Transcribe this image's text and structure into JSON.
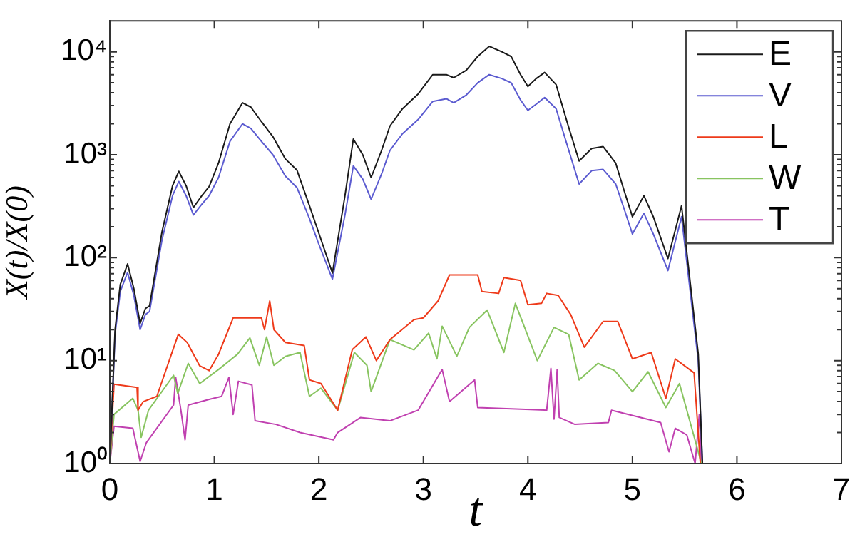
{
  "chart_data": {
    "type": "line",
    "xlabel": "t",
    "ylabel": "X(t)/X(0)",
    "log": "y",
    "xlim": [
      0,
      7
    ],
    "xticks": [
      0,
      1,
      2,
      3,
      4,
      5,
      6,
      7
    ],
    "ylim": [
      1,
      20000
    ],
    "yticks": [
      {
        "value": 1,
        "label": "10⁰"
      },
      {
        "value": 10,
        "label": "10¹"
      },
      {
        "value": 100,
        "label": "10²"
      },
      {
        "value": 1000,
        "label": "10³"
      },
      {
        "value": 10000,
        "label": "10⁴"
      }
    ],
    "grid": false,
    "legend": "top right",
    "marker": "none",
    "line_style": "solid",
    "series": [
      {
        "name": "E",
        "color": "#1a1a1a",
        "x": [
          0,
          0.05,
          0.1,
          0.17,
          0.23,
          0.29,
          0.34,
          0.38,
          0.5,
          0.6,
          0.66,
          0.73,
          0.8,
          0.88,
          0.95,
          1.04,
          1.15,
          1.27,
          1.35,
          1.45,
          1.56,
          1.68,
          1.79,
          1.91,
          2.0,
          2.13,
          2.25,
          2.33,
          2.42,
          2.5,
          2.6,
          2.68,
          2.8,
          2.95,
          3.09,
          3.22,
          3.29,
          3.41,
          3.52,
          3.63,
          3.75,
          3.84,
          3.93,
          4.0,
          4.08,
          4.16,
          4.27,
          4.38,
          4.49,
          4.61,
          4.72,
          4.84,
          4.92,
          5.0,
          5.11,
          5.2,
          5.34,
          5.47,
          5.63,
          5.67
        ],
        "values": [
          1,
          20,
          55,
          87,
          50,
          23,
          32,
          34,
          180,
          500,
          690,
          500,
          307,
          400,
          490,
          830,
          2000,
          3200,
          2900,
          2100,
          1500,
          910,
          710,
          320,
          173,
          71,
          400,
          1420,
          1000,
          600,
          1100,
          1900,
          2800,
          3900,
          6000,
          6000,
          5600,
          6600,
          9000,
          11300,
          10000,
          9000,
          6000,
          4600,
          5500,
          6300,
          4800,
          2000,
          870,
          1150,
          1200,
          830,
          450,
          250,
          400,
          250,
          98,
          320,
          11.6,
          1
        ]
      },
      {
        "name": "V",
        "color": "#5b5bd0",
        "x": [
          0,
          0.05,
          0.1,
          0.17,
          0.23,
          0.29,
          0.34,
          0.38,
          0.5,
          0.6,
          0.66,
          0.73,
          0.8,
          0.88,
          0.95,
          1.04,
          1.15,
          1.27,
          1.35,
          1.45,
          1.56,
          1.68,
          1.79,
          1.91,
          2.0,
          2.13,
          2.25,
          2.33,
          2.42,
          2.5,
          2.6,
          2.68,
          2.8,
          2.95,
          3.09,
          3.22,
          3.29,
          3.41,
          3.52,
          3.63,
          3.75,
          3.84,
          3.93,
          4.0,
          4.08,
          4.16,
          4.27,
          4.38,
          4.49,
          4.61,
          4.72,
          4.84,
          4.92,
          5.0,
          5.11,
          5.2,
          5.34,
          5.47,
          5.63,
          5.67
        ],
        "values": [
          1,
          18,
          47,
          72,
          43,
          20,
          28,
          30,
          150,
          400,
          550,
          400,
          260,
          330,
          400,
          600,
          1350,
          2000,
          1800,
          1350,
          1000,
          620,
          480,
          240,
          135,
          62,
          260,
          780,
          580,
          370,
          650,
          1100,
          1600,
          2200,
          3300,
          3500,
          3200,
          3800,
          5000,
          6000,
          5500,
          5000,
          3400,
          2700,
          3100,
          3600,
          2800,
          1200,
          520,
          700,
          720,
          520,
          300,
          170,
          270,
          170,
          75,
          250,
          10,
          1
        ]
      },
      {
        "name": "L",
        "color": "#ee3a1a",
        "x": [
          0,
          0.04,
          0.26,
          0.27,
          0.32,
          0.45,
          0.655,
          0.74,
          0.86,
          0.95,
          1.04,
          1.18,
          1.45,
          1.48,
          1.53,
          1.57,
          1.68,
          1.86,
          1.91,
          2.02,
          2.18,
          2.32,
          2.45,
          2.55,
          2.68,
          2.91,
          3.0,
          3.14,
          3.25,
          3.52,
          3.56,
          3.72,
          3.77,
          3.93,
          4.0,
          4.13,
          4.18,
          4.29,
          4.41,
          4.54,
          4.72,
          4.86,
          5.0,
          5.18,
          5.32,
          5.41,
          5.59,
          5.65
        ],
        "values": [
          1,
          5.9,
          5.5,
          3.3,
          4,
          4.5,
          18,
          15,
          8.9,
          8,
          11.5,
          26,
          26,
          20,
          38,
          20,
          15,
          14,
          6.5,
          6,
          3.3,
          12.8,
          17,
          10,
          16,
          25,
          26,
          38,
          68,
          68,
          47,
          45,
          64,
          60,
          35,
          36,
          45,
          43,
          28,
          13.5,
          24,
          24,
          10.4,
          12,
          4.3,
          10.4,
          7.6,
          1
        ]
      },
      {
        "name": "W",
        "color": "#88c460",
        "x": [
          0,
          0.04,
          0.22,
          0.27,
          0.3,
          0.37,
          0.61,
          0.65,
          0.75,
          0.86,
          1.04,
          1.22,
          1.34,
          1.43,
          1.5,
          1.57,
          1.68,
          1.82,
          1.91,
          2.02,
          2.18,
          2.34,
          2.46,
          2.5,
          2.68,
          2.91,
          3.05,
          3.13,
          3.18,
          3.32,
          3.44,
          3.61,
          3.77,
          3.88,
          4.09,
          4.25,
          4.39,
          4.49,
          4.67,
          4.83,
          5.0,
          5.15,
          5.32,
          5.45,
          5.63,
          5.66
        ],
        "values": [
          1,
          3,
          4.3,
          3.3,
          1.8,
          3.3,
          7.2,
          4.8,
          9.4,
          6,
          8.2,
          11.5,
          16.6,
          9,
          17,
          9,
          11,
          12,
          4.5,
          5.4,
          3.3,
          12,
          9,
          5,
          16,
          12.7,
          18.5,
          10.4,
          21.6,
          11,
          21,
          31,
          12,
          36,
          10,
          21,
          18,
          6.5,
          9.4,
          8,
          5,
          7.8,
          3.5,
          6,
          1.3,
          1
        ]
      },
      {
        "name": "T",
        "color": "#c040b0",
        "x": [
          0,
          0.04,
          0.22,
          0.29,
          0.35,
          0.61,
          0.63,
          0.68,
          0.72,
          0.75,
          0.95,
          1.07,
          1.14,
          1.18,
          1.23,
          1.36,
          1.39,
          1.59,
          1.82,
          2.14,
          2.18,
          2.4,
          2.68,
          2.95,
          3.18,
          3.25,
          3.49,
          3.52,
          4.18,
          4.22,
          4.25,
          4.28,
          4.3,
          4.45,
          4.77,
          4.8,
          5.27,
          5.35,
          5.41,
          5.52,
          5.6,
          5.64,
          5.66
        ],
        "values": [
          1,
          2.3,
          2.2,
          1.05,
          1.6,
          3.7,
          6.9,
          3.3,
          1.7,
          3.7,
          4.2,
          4.5,
          6.9,
          3,
          6.3,
          5.8,
          2.6,
          2.4,
          2,
          1.7,
          2,
          2.8,
          2.6,
          3.3,
          8.2,
          4,
          6.5,
          3.5,
          3.3,
          8.4,
          2.7,
          8.2,
          2.8,
          2.4,
          2.5,
          3.3,
          2.5,
          1.3,
          2.2,
          1.9,
          1,
          3,
          1
        ]
      }
    ]
  }
}
